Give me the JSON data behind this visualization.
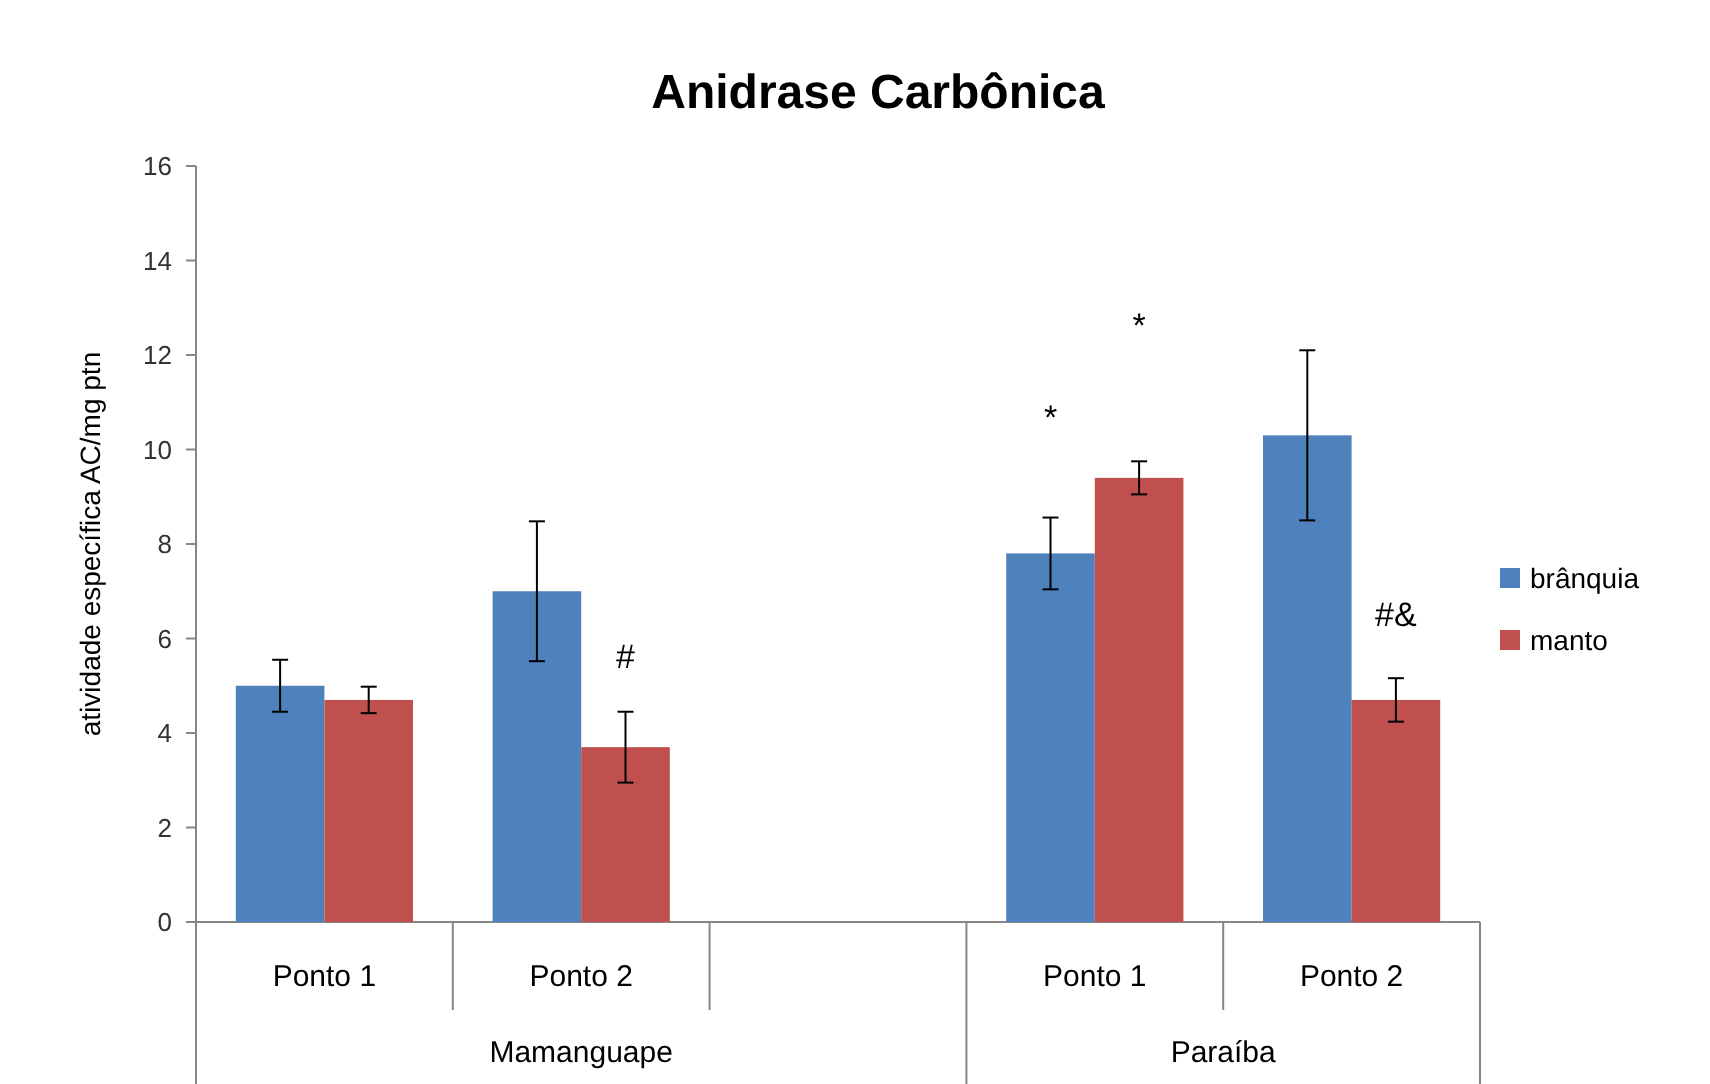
{
  "chart_data": {
    "type": "bar",
    "title": "Anidrase Carbônica",
    "ylabel": "atividade específica AC/mg ptn",
    "categories": [
      "Ponto 1",
      "Ponto 2",
      null,
      "Ponto 1",
      "Ponto 2"
    ],
    "series": [
      {
        "name": "brânquia",
        "color": "#4f81bd",
        "values": [
          5.0,
          7.0,
          null,
          7.8,
          10.3
        ],
        "errors": [
          0.55,
          1.48,
          null,
          0.76,
          1.8
        ]
      },
      {
        "name": "manto",
        "color": "#c0504d",
        "values": [
          4.7,
          3.7,
          null,
          9.4,
          4.7
        ],
        "errors": [
          0.28,
          0.75,
          null,
          0.35,
          0.46
        ]
      }
    ],
    "ylim": [
      0,
      16
    ],
    "yticks": [
      0,
      2,
      4,
      6,
      8,
      10,
      12,
      14,
      16
    ],
    "grid": false,
    "legend": "right",
    "annotations": [
      "Mamanguape",
      "Paraíba",
      "#",
      "*",
      "*",
      "#&"
    ]
  }
}
